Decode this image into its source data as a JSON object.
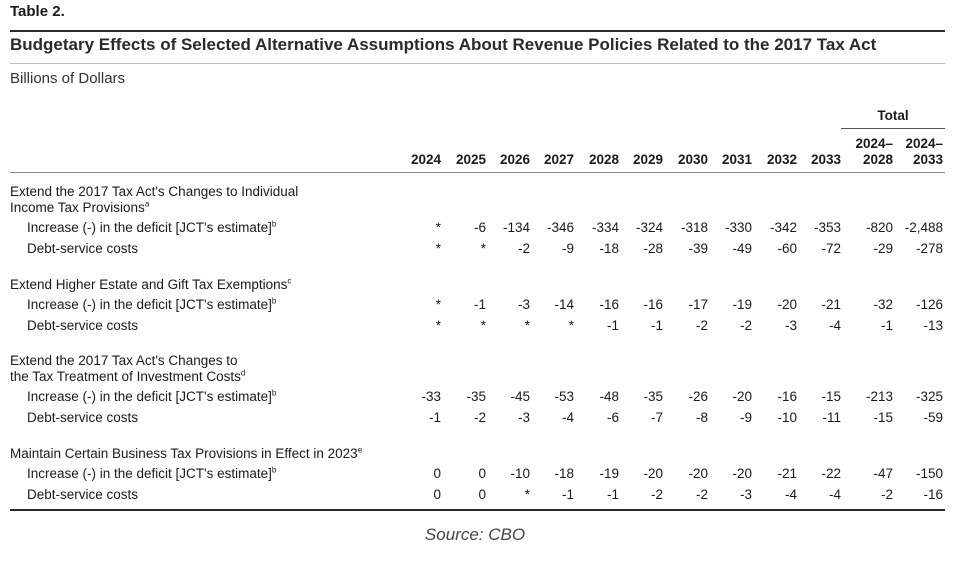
{
  "table": {
    "label": "Table 2.",
    "title": "Budgetary Effects of Selected Alternative Assumptions About Revenue Policies Related to the 2017 Tax Act",
    "units": "Billions of Dollars",
    "total_header": "Total",
    "years": [
      "2024",
      "2025",
      "2026",
      "2027",
      "2028",
      "2029",
      "2030",
      "2031",
      "2032",
      "2033"
    ],
    "total_columns": [
      {
        "line1": "2024–",
        "line2": "2028"
      },
      {
        "line1": "2024–",
        "line2": "2033"
      }
    ],
    "sections": [
      {
        "heading_line1": "Extend the 2017 Tax Act's Changes to Individual",
        "heading_line2": "Income Tax Provisions",
        "heading_note": "a",
        "rows": [
          {
            "label": "Increase (-) in the deficit [JCT's estimate]",
            "note": "b",
            "values": [
              "*",
              "-6",
              "-134",
              "-346",
              "-334",
              "-324",
              "-318",
              "-330",
              "-342",
              "-353",
              "-820",
              "-2,488"
            ]
          },
          {
            "label": "Debt-service costs",
            "note": "",
            "values": [
              "*",
              "*",
              "-2",
              "-9",
              "-18",
              "-28",
              "-39",
              "-49",
              "-60",
              "-72",
              "-29",
              "-278"
            ]
          }
        ]
      },
      {
        "heading_line1": "Extend Higher Estate and Gift Tax Exemptions",
        "heading_line2": "",
        "heading_note": "c",
        "rows": [
          {
            "label": "Increase (-) in the deficit [JCT's estimate]",
            "note": "b",
            "values": [
              "*",
              "-1",
              "-3",
              "-14",
              "-16",
              "-16",
              "-17",
              "-19",
              "-20",
              "-21",
              "-32",
              "-126"
            ]
          },
          {
            "label": "Debt-service costs",
            "note": "",
            "values": [
              "*",
              "*",
              "*",
              "*",
              "-1",
              "-1",
              "-2",
              "-2",
              "-3",
              "-4",
              "-1",
              "-13"
            ]
          }
        ]
      },
      {
        "heading_line1": "Extend the 2017 Tax Act's Changes to",
        "heading_line2": "the Tax Treatment of Investment Costs",
        "heading_note": "d",
        "rows": [
          {
            "label": "Increase (-) in the deficit [JCT's estimate]",
            "note": "b",
            "values": [
              "-33",
              "-35",
              "-45",
              "-53",
              "-48",
              "-35",
              "-26",
              "-20",
              "-16",
              "-15",
              "-213",
              "-325"
            ]
          },
          {
            "label": "Debt-service costs",
            "note": "",
            "values": [
              "-1",
              "-2",
              "-3",
              "-4",
              "-6",
              "-7",
              "-8",
              "-9",
              "-10",
              "-11",
              "-15",
              "-59"
            ]
          }
        ]
      },
      {
        "heading_line1": "Maintain Certain Business Tax Provisions in Effect in 2023",
        "heading_line2": "",
        "heading_note": "e",
        "rows": [
          {
            "label": "Increase (-) in the deficit [JCT's estimate]",
            "note": "b",
            "values": [
              "0",
              "0",
              "-10",
              "-18",
              "-19",
              "-20",
              "-20",
              "-20",
              "-21",
              "-22",
              "-47",
              "-150"
            ]
          },
          {
            "label": "Debt-service costs",
            "note": "",
            "values": [
              "0",
              "0",
              "*",
              "-1",
              "-1",
              "-2",
              "-2",
              "-3",
              "-4",
              "-4",
              "-2",
              "-16"
            ]
          }
        ]
      }
    ]
  },
  "source": "Source: CBO"
}
